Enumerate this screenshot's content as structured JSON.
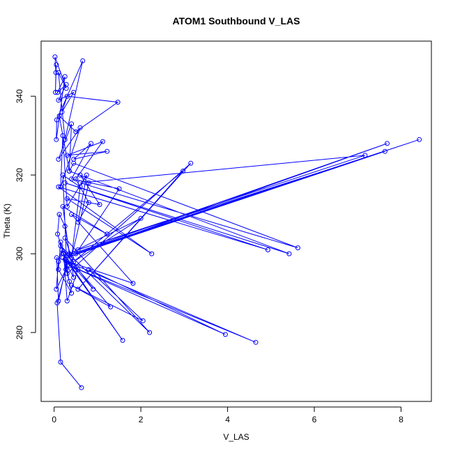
{
  "chart_data": {
    "type": "line",
    "title": "ATOM1 Southbound V_LAS",
    "xlabel": "V_LAS",
    "ylabel": "Theta (K)",
    "xlim": [
      -0.3,
      8.7
    ],
    "ylim": [
      262.5,
      354.0
    ],
    "x_ticks": [
      0,
      2,
      4,
      6,
      8
    ],
    "y_ticks": [
      280,
      300,
      320,
      340
    ],
    "x_tick_labels": [
      "0",
      "2",
      "4",
      "6",
      "8"
    ],
    "y_tick_labels": [
      "280",
      "300",
      "320",
      "340"
    ],
    "grid": false,
    "legend": "none",
    "color": "#0000ff",
    "markers": "open-circle",
    "series": [
      {
        "x": [
          0.63,
          0.15,
          0.07,
          0.27,
          0.05,
          0.1,
          0.18,
          0.3,
          0.08,
          0.12,
          0.25,
          0.45,
          0.2,
          0.35,
          0.15,
          0.1,
          0.4,
          0.22,
          0.3,
          0.55,
          1.3,
          0.4,
          2.05,
          0.8,
          3.95,
          0.35,
          4.65,
          0.3,
          1.58,
          0.2,
          0.9,
          0.15,
          2.2,
          0.25,
          0.5,
          0.3,
          0.1,
          0.06,
          1.82,
          0.4,
          1.22,
          0.2,
          0.35,
          2.0,
          0.45,
          2.97,
          0.55,
          3.15,
          0.3,
          0.2,
          0.6,
          0.4,
          0.8,
          0.6,
          1.05,
          0.3,
          2.25,
          0.1,
          4.93,
          0.25,
          5.42,
          0.35,
          0.45,
          5.62,
          0.6,
          7.17,
          0.55,
          7.63,
          0.28,
          7.68,
          0.3,
          8.42,
          0.5,
          1.5,
          0.4,
          0.85,
          0.45,
          1.22,
          0.3,
          1.12,
          0.5,
          0.8,
          0.55,
          0.75,
          0.3,
          0.2,
          0.15,
          0.6,
          0.1,
          0.4,
          0.35,
          0.12,
          0.5,
          1.47,
          0.3,
          0.18,
          0.45,
          0.1,
          0.28,
          0.08,
          0.25,
          0.05,
          0.06,
          0.66,
          0.25,
          0.1,
          0.28,
          0.02,
          0.04,
          0.03,
          0.05
        ],
        "y": [
          266,
          272.5,
          287.5,
          296,
          291,
          298,
          301,
          297,
          305,
          310,
          307,
          294,
          299,
          293,
          303,
          296,
          290,
          300,
          288,
          296,
          286.5,
          292,
          283,
          296,
          279.5,
          297,
          277.5,
          298,
          278,
          300,
          291,
          302,
          280,
          304,
          296,
          298,
          288,
          299,
          292.5,
          310,
          305,
          312,
          300,
          309,
          298,
          321,
          291,
          323,
          295,
          320,
          317,
          299,
          318,
          320,
          312.5,
          314,
          300,
          317,
          301,
          318,
          300,
          321,
          323,
          301.5,
          318,
          325,
          301,
          326,
          299,
          328,
          299.5,
          329,
          300,
          316.5,
          319,
          328,
          324,
          326,
          325,
          328.5,
          319,
          313,
          308,
          320,
          312,
          330,
          317,
          332,
          324,
          333,
          321,
          335,
          331,
          338.5,
          340,
          336,
          341,
          339,
          343,
          341,
          345,
          329,
          334,
          349,
          329,
          346,
          342,
          350,
          346,
          341,
          348
        ]
      }
    ]
  }
}
